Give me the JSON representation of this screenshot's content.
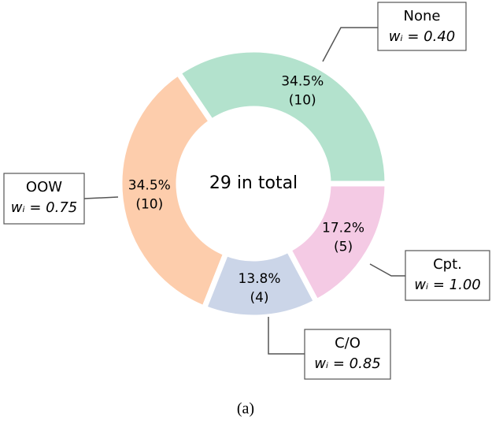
{
  "chart_data": {
    "type": "donut",
    "center_text": "29 in total",
    "caption": "(a)",
    "categories": [
      "None",
      "OOW",
      "C/O",
      "Cpt."
    ],
    "values": [
      34.5,
      34.5,
      13.8,
      17.2
    ],
    "value_labels": [
      "34.5%",
      "34.5%",
      "13.8%",
      "17.2%"
    ],
    "counts": [
      10,
      10,
      4,
      5
    ],
    "count_labels": [
      "(10)",
      "(10)",
      "(4)",
      "(5)"
    ],
    "weight_labels": [
      "wᵢ = 0.40",
      "wᵢ = 0.75",
      "wᵢ = 0.85",
      "wᵢ = 1.00"
    ],
    "colors": [
      "#b3e2cd",
      "#fdcdac",
      "#cbd5e8",
      "#f4cae4"
    ]
  }
}
